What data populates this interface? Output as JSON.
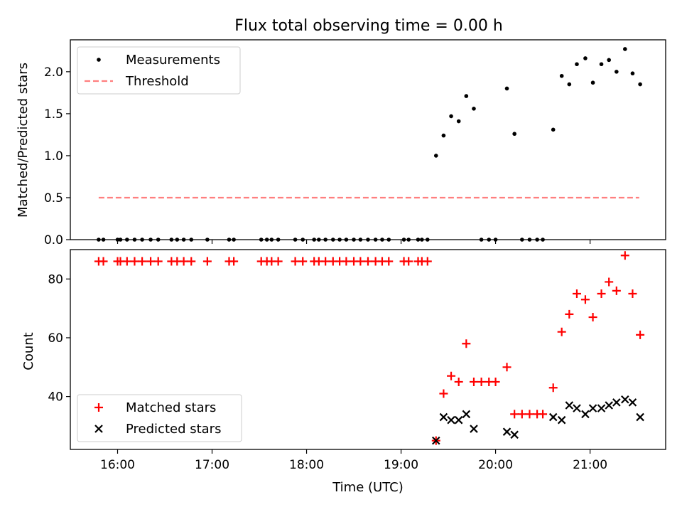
{
  "title": "Flux total observing time = 0.00 h",
  "xlabel": "Time (UTC)",
  "x_ticks": [
    {
      "label": "16:00",
      "hour": 16.0
    },
    {
      "label": "17:00",
      "hour": 17.0
    },
    {
      "label": "18:00",
      "hour": 18.0
    },
    {
      "label": "19:00",
      "hour": 19.0
    },
    {
      "label": "20:00",
      "hour": 20.0
    },
    {
      "label": "21:00",
      "hour": 21.0
    }
  ],
  "colors": {
    "matched": "#ff0000",
    "predicted": "#000000",
    "measurement": "#000000",
    "threshold": "#ff7f7f"
  },
  "chart_data": [
    {
      "type": "scatter",
      "ylabel": "Matched/Predicted stars",
      "xlim": [
        15.5,
        21.8
      ],
      "ylim": [
        0,
        2.38
      ],
      "y_ticks": [
        "0.0",
        "0.5",
        "1.0",
        "1.5",
        "2.0"
      ],
      "legend": {
        "position": "top-left",
        "entries": [
          "Measurements",
          "Threshold"
        ]
      },
      "threshold": {
        "name": "Threshold",
        "x": [
          15.8,
          21.52
        ],
        "y": 0.5
      },
      "series": [
        {
          "name": "Measurements",
          "points": [
            [
              15.8,
              0
            ],
            [
              15.85,
              0
            ],
            [
              16.0,
              0
            ],
            [
              16.03,
              0
            ],
            [
              16.1,
              0
            ],
            [
              16.18,
              0
            ],
            [
              16.26,
              0
            ],
            [
              16.35,
              0
            ],
            [
              16.43,
              0
            ],
            [
              16.57,
              0
            ],
            [
              16.63,
              0
            ],
            [
              16.7,
              0
            ],
            [
              16.78,
              0
            ],
            [
              16.95,
              0
            ],
            [
              17.18,
              0
            ],
            [
              17.23,
              0
            ],
            [
              17.52,
              0
            ],
            [
              17.58,
              0
            ],
            [
              17.63,
              0
            ],
            [
              17.7,
              0
            ],
            [
              17.88,
              0
            ],
            [
              17.96,
              0
            ],
            [
              18.08,
              0
            ],
            [
              18.13,
              0
            ],
            [
              18.2,
              0
            ],
            [
              18.28,
              0
            ],
            [
              18.35,
              0
            ],
            [
              18.42,
              0
            ],
            [
              18.5,
              0
            ],
            [
              18.57,
              0
            ],
            [
              18.65,
              0
            ],
            [
              18.73,
              0
            ],
            [
              18.8,
              0
            ],
            [
              18.87,
              0
            ],
            [
              19.03,
              0
            ],
            [
              19.08,
              0
            ],
            [
              19.18,
              0
            ],
            [
              19.22,
              0
            ],
            [
              19.28,
              0
            ],
            [
              19.37,
              1.0
            ],
            [
              19.45,
              1.24
            ],
            [
              19.53,
              1.47
            ],
            [
              19.61,
              1.41
            ],
            [
              19.69,
              1.71
            ],
            [
              19.77,
              1.56
            ],
            [
              19.85,
              0
            ],
            [
              19.93,
              0
            ],
            [
              20.0,
              0
            ],
            [
              20.12,
              1.8
            ],
            [
              20.2,
              1.26
            ],
            [
              20.28,
              0
            ],
            [
              20.36,
              0
            ],
            [
              20.44,
              0
            ],
            [
              20.5,
              0
            ],
            [
              20.61,
              1.31
            ],
            [
              20.7,
              1.95
            ],
            [
              20.78,
              1.85
            ],
            [
              20.86,
              2.09
            ],
            [
              20.95,
              2.16
            ],
            [
              21.03,
              1.87
            ],
            [
              21.12,
              2.09
            ],
            [
              21.2,
              2.14
            ],
            [
              21.28,
              2.0
            ],
            [
              21.37,
              2.27
            ],
            [
              21.45,
              1.98
            ],
            [
              21.53,
              1.85
            ]
          ]
        }
      ]
    },
    {
      "type": "scatter",
      "ylabel": "Count",
      "xlim": [
        15.5,
        21.8
      ],
      "ylim": [
        22,
        90
      ],
      "y_ticks": [
        "40",
        "60",
        "80"
      ],
      "legend": {
        "position": "bottom-left",
        "entries": [
          "Matched stars",
          "Predicted stars"
        ]
      },
      "series": [
        {
          "name": "Matched stars",
          "marker": "plus",
          "points": [
            [
              15.8,
              86
            ],
            [
              15.85,
              86
            ],
            [
              16.0,
              86
            ],
            [
              16.03,
              86
            ],
            [
              16.1,
              86
            ],
            [
              16.18,
              86
            ],
            [
              16.26,
              86
            ],
            [
              16.35,
              86
            ],
            [
              16.43,
              86
            ],
            [
              16.57,
              86
            ],
            [
              16.63,
              86
            ],
            [
              16.7,
              86
            ],
            [
              16.78,
              86
            ],
            [
              16.95,
              86
            ],
            [
              17.18,
              86
            ],
            [
              17.23,
              86
            ],
            [
              17.52,
              86
            ],
            [
              17.58,
              86
            ],
            [
              17.63,
              86
            ],
            [
              17.7,
              86
            ],
            [
              17.88,
              86
            ],
            [
              17.96,
              86
            ],
            [
              18.08,
              86
            ],
            [
              18.13,
              86
            ],
            [
              18.2,
              86
            ],
            [
              18.28,
              86
            ],
            [
              18.35,
              86
            ],
            [
              18.42,
              86
            ],
            [
              18.5,
              86
            ],
            [
              18.57,
              86
            ],
            [
              18.65,
              86
            ],
            [
              18.73,
              86
            ],
            [
              18.8,
              86
            ],
            [
              18.87,
              86
            ],
            [
              19.03,
              86
            ],
            [
              19.08,
              86
            ],
            [
              19.18,
              86
            ],
            [
              19.22,
              86
            ],
            [
              19.28,
              86
            ],
            [
              19.37,
              25
            ],
            [
              19.45,
              41
            ],
            [
              19.53,
              47
            ],
            [
              19.61,
              45
            ],
            [
              19.69,
              58
            ],
            [
              19.77,
              45
            ],
            [
              19.85,
              45
            ],
            [
              19.93,
              45
            ],
            [
              20.0,
              45
            ],
            [
              20.12,
              50
            ],
            [
              20.2,
              34
            ],
            [
              20.28,
              34
            ],
            [
              20.36,
              34
            ],
            [
              20.44,
              34
            ],
            [
              20.5,
              34
            ],
            [
              20.61,
              43
            ],
            [
              20.7,
              62
            ],
            [
              20.78,
              68
            ],
            [
              20.86,
              75
            ],
            [
              20.95,
              73
            ],
            [
              21.03,
              67
            ],
            [
              21.12,
              75
            ],
            [
              21.2,
              79
            ],
            [
              21.28,
              76
            ],
            [
              21.37,
              88
            ],
            [
              21.45,
              75
            ],
            [
              21.53,
              61
            ]
          ]
        },
        {
          "name": "Predicted stars",
          "marker": "x",
          "points": [
            [
              19.37,
              25
            ],
            [
              19.45,
              33
            ],
            [
              19.53,
              32
            ],
            [
              19.61,
              32
            ],
            [
              19.69,
              34
            ],
            [
              19.77,
              29
            ],
            [
              20.12,
              28
            ],
            [
              20.2,
              27
            ],
            [
              20.61,
              33
            ],
            [
              20.7,
              32
            ],
            [
              20.78,
              37
            ],
            [
              20.86,
              36
            ],
            [
              20.95,
              34
            ],
            [
              21.03,
              36
            ],
            [
              21.12,
              36
            ],
            [
              21.2,
              37
            ],
            [
              21.28,
              38
            ],
            [
              21.37,
              39
            ],
            [
              21.45,
              38
            ],
            [
              21.53,
              33
            ]
          ]
        }
      ]
    }
  ]
}
